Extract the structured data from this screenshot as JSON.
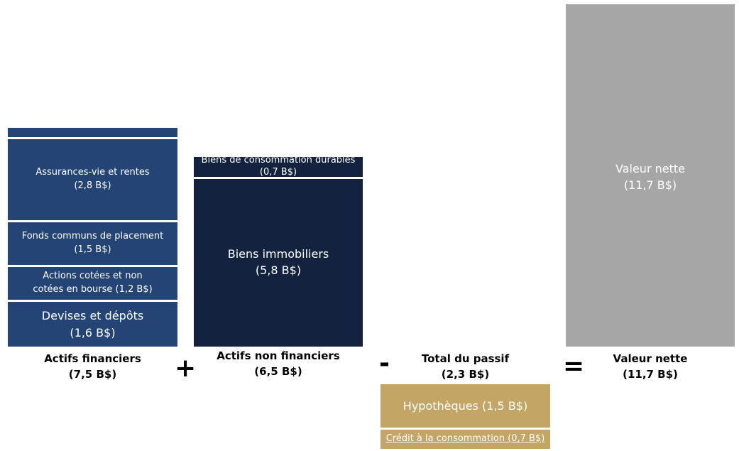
{
  "chart_data": {
    "type": "stacked-bar",
    "unit": "B$",
    "bars": [
      {
        "name": "Actifs financiers",
        "total_label": "(7,5 B$)",
        "total": 7.5,
        "segments": [
          {
            "name": "Devises et dépôts",
            "value_label": "(1,6 B$)",
            "value": 1.6
          },
          {
            "name": "Actions cotées et non",
            "name2": "cotées en bourse (1,2 B$)",
            "value": 1.2
          },
          {
            "name": "Fonds communs de placement",
            "value_label": "(1,5 B$)",
            "value": 1.5
          },
          {
            "name": "Assurances-vie et rentes",
            "value_label": "(2,8 B$)",
            "value": 2.8
          },
          {
            "name": "",
            "value": 0.4
          }
        ]
      },
      {
        "name": "Actifs non financiers",
        "total_label": "(6,5 B$)",
        "total": 6.5,
        "segments": [
          {
            "name": "Biens immobiliers",
            "value_label": "(5,8 B$)",
            "value": 5.8
          },
          {
            "name": "Biens de consommation durables",
            "value_label": "(0,7 B$)",
            "value": 0.7
          }
        ]
      },
      {
        "name": "Total du passif",
        "total_label": "(2,3 B$)",
        "total": 2.3,
        "segments": [
          {
            "name": "Hypothèques (1,5 B$)",
            "value": 1.5
          },
          {
            "name": "Crédit à la consommation (0,7 B$)",
            "value": 0.7
          }
        ]
      },
      {
        "name": "Valeur nette",
        "total_label": "(11,7 B$)",
        "total": 11.7,
        "segments": [
          {
            "name": "Valeur nette",
            "value_label": "(11,7 B$)",
            "value": 11.7
          }
        ]
      }
    ],
    "operators": [
      "+",
      "-",
      "="
    ],
    "colors": {
      "financial": "#234474",
      "nonfinancial": "#13223e",
      "liabilities": "#c3a566",
      "networth": "#a6a6a6"
    }
  }
}
